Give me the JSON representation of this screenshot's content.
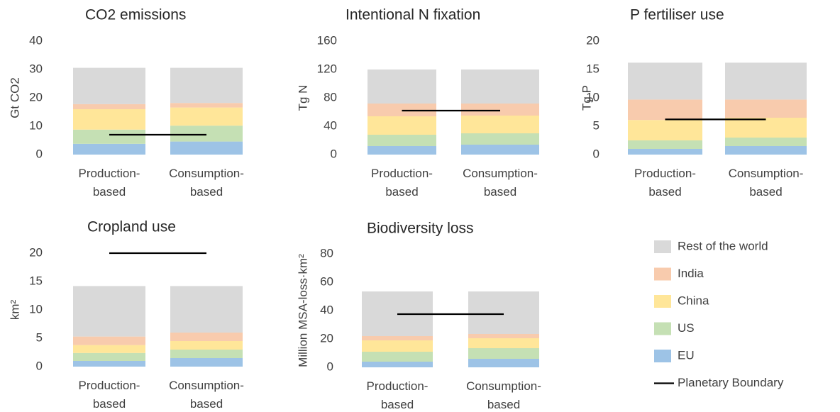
{
  "legend": {
    "series": [
      {
        "name": "EU",
        "color": "#9dc3e6"
      },
      {
        "name": "US",
        "color": "#c5e0b4"
      },
      {
        "name": "China",
        "color": "#ffe699"
      },
      {
        "name": "India",
        "color": "#f8cbad"
      },
      {
        "name": "Rest of the world",
        "color": "#d9d9d9"
      }
    ],
    "boundary_label": "Planetary Boundary",
    "boundary_color": "#000000"
  },
  "chart_data": [
    {
      "type": "bar",
      "stacked": true,
      "title": "CO2 emissions",
      "ylabel": "Gt CO2",
      "categories": [
        "Production-based",
        "Consumption-based"
      ],
      "series": [
        {
          "values": [
            3.8,
            4.6
          ]
        },
        {
          "values": [
            5,
            5.6
          ]
        },
        {
          "values": [
            7.2,
            6.4
          ]
        },
        {
          "values": [
            1.8,
            1.6
          ]
        },
        {
          "values": [
            12.8,
            12.4
          ]
        }
      ],
      "boundary": 7,
      "ylim": [
        0,
        40
      ],
      "yticks": [
        0,
        10,
        20,
        30,
        40
      ]
    },
    {
      "type": "bar",
      "stacked": true,
      "title": "Intentional N fixation",
      "ylabel": "Tg N",
      "categories": [
        "Production-based",
        "Consumption-based"
      ],
      "series": [
        {
          "values": [
            12,
            14
          ]
        },
        {
          "values": [
            16,
            16
          ]
        },
        {
          "values": [
            26,
            25
          ]
        },
        {
          "values": [
            18,
            17
          ]
        },
        {
          "values": [
            48,
            48
          ]
        }
      ],
      "boundary": 62,
      "ylim": [
        0,
        160
      ],
      "yticks": [
        0,
        40,
        80,
        120,
        160
      ]
    },
    {
      "type": "bar",
      "stacked": true,
      "title": "P fertiliser use",
      "ylabel": "Tg P",
      "categories": [
        "Production-based",
        "Consumption-based"
      ],
      "series": [
        {
          "values": [
            1,
            1.5
          ]
        },
        {
          "values": [
            1.5,
            1.5
          ]
        },
        {
          "values": [
            3.6,
            3.5
          ]
        },
        {
          "values": [
            3.6,
            3.2
          ]
        },
        {
          "values": [
            6.5,
            6.5
          ]
        }
      ],
      "boundary": 6.2,
      "ylim": [
        0,
        20
      ],
      "yticks": [
        0,
        5,
        10,
        15,
        20
      ]
    },
    {
      "type": "bar",
      "stacked": true,
      "title": "Cropland use",
      "ylabel": "km²",
      "categories": [
        "Production-based",
        "Consumption-based"
      ],
      "series": [
        {
          "values": [
            1,
            1.5
          ]
        },
        {
          "values": [
            1.4,
            1.5
          ]
        },
        {
          "values": [
            1.4,
            1.5
          ]
        },
        {
          "values": [
            1.5,
            1.5
          ]
        },
        {
          "values": [
            8.9,
            8.2
          ]
        }
      ],
      "boundary": 20,
      "ylim": [
        0,
        20
      ],
      "yticks": [
        0,
        5,
        10,
        15,
        20
      ]
    },
    {
      "type": "bar",
      "stacked": true,
      "title": "Biodiversity loss",
      "ylabel": "Million MSA-loss·km²",
      "categories": [
        "Production-based",
        "Consumption-based"
      ],
      "series": [
        {
          "values": [
            4,
            6
          ]
        },
        {
          "values": [
            7,
            7.5
          ]
        },
        {
          "values": [
            8,
            7
          ]
        },
        {
          "values": [
            3,
            3
          ]
        },
        {
          "values": [
            31.5,
            30
          ]
        }
      ],
      "boundary": 37.5,
      "ylim": [
        0,
        80
      ],
      "yticks": [
        0,
        20,
        40,
        60,
        80
      ]
    }
  ]
}
